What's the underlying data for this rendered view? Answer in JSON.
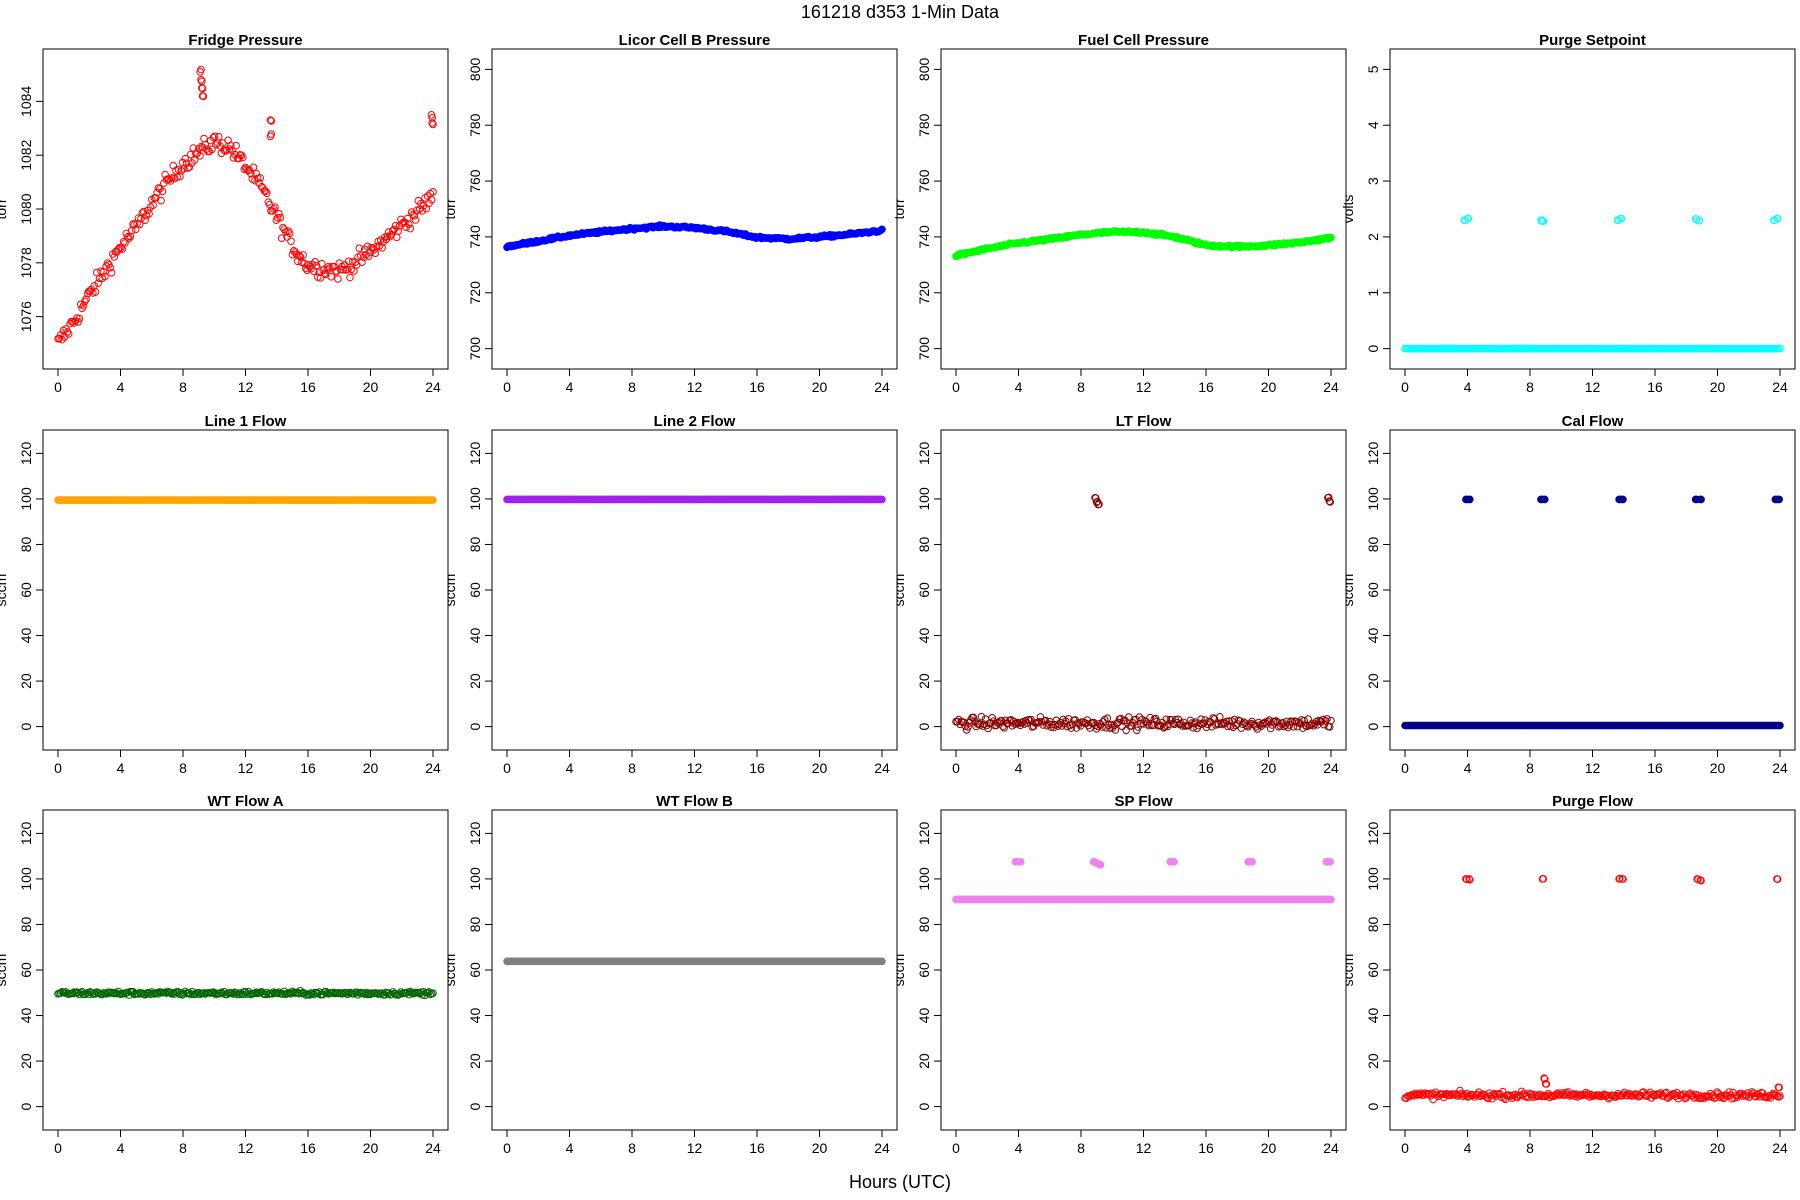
{
  "figure": {
    "title": "161218    d353    1-Min Data",
    "xlabel": "Hours (UTC)"
  },
  "chart_data": [
    {
      "type": "scatter",
      "title": "Fridge Pressure",
      "ylabel": "torr",
      "color": "#ff0000",
      "filled": false,
      "xlim": [
        0,
        24
      ],
      "ylim": [
        1074.5,
        1085.5
      ],
      "xticks": [
        0,
        4,
        8,
        12,
        16,
        20,
        24
      ],
      "yticks": [
        1076,
        1078,
        1080,
        1082,
        1084
      ],
      "x": [
        0,
        1,
        2,
        3,
        4,
        5,
        6,
        7,
        8,
        9,
        10,
        11,
        12,
        13,
        14,
        15,
        16,
        17,
        18,
        19,
        20,
        21,
        22,
        23,
        24
      ],
      "y": [
        1075.0,
        1075.8,
        1076.8,
        1077.7,
        1078.6,
        1079.3,
        1080.2,
        1081.0,
        1081.7,
        1082.1,
        1082.5,
        1082.3,
        1081.6,
        1080.8,
        1079.7,
        1078.6,
        1077.9,
        1077.8,
        1077.7,
        1078.0,
        1078.4,
        1078.9,
        1079.4,
        1079.9,
        1080.5
      ],
      "noise": 0.25,
      "extra_points": [
        {
          "x": 9.1,
          "y": 1085.1
        },
        {
          "x": 9.15,
          "y": 1084.8
        },
        {
          "x": 9.2,
          "y": 1084.5
        },
        {
          "x": 9.25,
          "y": 1084.2
        },
        {
          "x": 13.6,
          "y": 1083.3
        },
        {
          "x": 13.6,
          "y": 1082.7
        },
        {
          "x": 23.9,
          "y": 1083.5
        },
        {
          "x": 23.95,
          "y": 1083.2
        }
      ]
    },
    {
      "type": "scatter",
      "title": "Licor Cell B Pressure",
      "ylabel": "torr",
      "color": "#0000ff",
      "filled": true,
      "xlim": [
        0,
        24
      ],
      "ylim": [
        697,
        803
      ],
      "xticks": [
        0,
        4,
        8,
        12,
        16,
        20,
        24
      ],
      "yticks": [
        700,
        720,
        740,
        760,
        780,
        800
      ],
      "x": [
        0,
        2,
        4,
        6,
        8,
        10,
        12,
        14,
        16,
        18,
        20,
        22,
        24
      ],
      "y": [
        736.5,
        738.5,
        740.5,
        741.8,
        743.0,
        743.8,
        743.3,
        742.0,
        739.8,
        739.3,
        740.0,
        741.0,
        742.3
      ],
      "noise": 0.3,
      "extra_points": []
    },
    {
      "type": "scatter",
      "title": "Fuel Cell Pressure",
      "ylabel": "torr",
      "color": "#00ff00",
      "filled": true,
      "xlim": [
        0,
        24
      ],
      "ylim": [
        697,
        803
      ],
      "xticks": [
        0,
        4,
        8,
        12,
        16,
        20,
        24
      ],
      "yticks": [
        700,
        720,
        740,
        760,
        780,
        800
      ],
      "x": [
        0,
        2,
        4,
        6,
        8,
        10,
        12,
        14,
        16,
        18,
        20,
        22,
        24
      ],
      "y": [
        733.3,
        735.8,
        737.8,
        739.2,
        740.8,
        741.8,
        741.7,
        740.0,
        737.0,
        736.5,
        737.0,
        738.0,
        739.7
      ],
      "noise": 0.3,
      "extra_points": []
    },
    {
      "type": "scatter",
      "title": "Purge Setpoint",
      "ylabel": "volts",
      "color": "#00ffff",
      "filled": false,
      "xlim": [
        0,
        24
      ],
      "ylim": [
        -0.15,
        5.15
      ],
      "xticks": [
        0,
        4,
        8,
        12,
        16,
        20,
        24
      ],
      "yticks": [
        0,
        1,
        2,
        3,
        4,
        5
      ],
      "x": [
        0,
        24
      ],
      "y": [
        0,
        0
      ],
      "noise": 0.0,
      "extra_points": [
        {
          "x": 3.8,
          "y": 2.3
        },
        {
          "x": 4.0,
          "y": 2.33
        },
        {
          "x": 8.7,
          "y": 2.3
        },
        {
          "x": 8.8,
          "y": 2.28
        },
        {
          "x": 13.6,
          "y": 2.3
        },
        {
          "x": 13.8,
          "y": 2.33
        },
        {
          "x": 18.6,
          "y": 2.32
        },
        {
          "x": 18.8,
          "y": 2.29
        },
        {
          "x": 23.6,
          "y": 2.3
        },
        {
          "x": 23.8,
          "y": 2.33
        }
      ]
    },
    {
      "type": "scatter",
      "title": "Line 1 Flow",
      "ylabel": "sccm",
      "color": "#ffa500",
      "filled": true,
      "xlim": [
        0,
        24
      ],
      "ylim": [
        -5,
        125
      ],
      "xticks": [
        0,
        4,
        8,
        12,
        16,
        20,
        24
      ],
      "yticks": [
        0,
        20,
        40,
        60,
        80,
        100,
        120
      ],
      "x": [
        0,
        24
      ],
      "y": [
        99.5,
        99.5
      ],
      "noise": 0.0,
      "extra_points": []
    },
    {
      "type": "scatter",
      "title": "Line 2 Flow",
      "ylabel": "sccm",
      "color": "#a020f0",
      "filled": true,
      "xlim": [
        0,
        24
      ],
      "ylim": [
        -5,
        125
      ],
      "xticks": [
        0,
        4,
        8,
        12,
        16,
        20,
        24
      ],
      "yticks": [
        0,
        20,
        40,
        60,
        80,
        100,
        120
      ],
      "x": [
        0,
        24
      ],
      "y": [
        99.8,
        99.8
      ],
      "noise": 0.0,
      "extra_points": []
    },
    {
      "type": "scatter",
      "title": "LT Flow",
      "ylabel": "sccm",
      "color": "#8b0000",
      "filled": false,
      "xlim": [
        0,
        24
      ],
      "ylim": [
        -5,
        125
      ],
      "xticks": [
        0,
        4,
        8,
        12,
        16,
        20,
        24
      ],
      "yticks": [
        0,
        20,
        40,
        60,
        80,
        100,
        120
      ],
      "x": [
        0,
        24
      ],
      "y": [
        1.5,
        1.5
      ],
      "noise": 1.8,
      "extra_points": [
        {
          "x": 8.9,
          "y": 100.5
        },
        {
          "x": 9.0,
          "y": 98.5
        },
        {
          "x": 9.1,
          "y": 97.5
        },
        {
          "x": 23.8,
          "y": 100.5
        },
        {
          "x": 23.9,
          "y": 99.0
        }
      ]
    },
    {
      "type": "scatter",
      "title": "Cal Flow",
      "ylabel": "sccm",
      "color": "#00008b",
      "filled": true,
      "xlim": [
        0,
        24
      ],
      "ylim": [
        -5,
        125
      ],
      "xticks": [
        0,
        4,
        8,
        12,
        16,
        20,
        24
      ],
      "yticks": [
        0,
        20,
        40,
        60,
        80,
        100,
        120
      ],
      "x": [
        0,
        24
      ],
      "y": [
        0.5,
        0.5
      ],
      "noise": 0.0,
      "extra_points": [
        {
          "x": 3.9,
          "y": 99.8
        },
        {
          "x": 4.1,
          "y": 99.8
        },
        {
          "x": 8.7,
          "y": 99.8
        },
        {
          "x": 8.9,
          "y": 99.8
        },
        {
          "x": 13.7,
          "y": 99.8
        },
        {
          "x": 13.9,
          "y": 99.8
        },
        {
          "x": 18.6,
          "y": 99.8
        },
        {
          "x": 18.9,
          "y": 99.8
        },
        {
          "x": 23.7,
          "y": 99.8
        },
        {
          "x": 23.9,
          "y": 99.8
        }
      ]
    },
    {
      "type": "scatter",
      "title": "WT Flow A",
      "ylabel": "sccm",
      "color": "#006400",
      "filled": false,
      "xlim": [
        0,
        24
      ],
      "ylim": [
        -5,
        125
      ],
      "xticks": [
        0,
        4,
        8,
        12,
        16,
        20,
        24
      ],
      "yticks": [
        0,
        20,
        40,
        60,
        80,
        100,
        120
      ],
      "x": [
        0,
        24
      ],
      "y": [
        49.8,
        49.8
      ],
      "noise": 0.6,
      "extra_points": []
    },
    {
      "type": "scatter",
      "title": "WT Flow B",
      "ylabel": "sccm",
      "color": "#808080",
      "filled": true,
      "xlim": [
        0,
        24
      ],
      "ylim": [
        -5,
        125
      ],
      "xticks": [
        0,
        4,
        8,
        12,
        16,
        20,
        24
      ],
      "yticks": [
        0,
        20,
        40,
        60,
        80,
        100,
        120
      ],
      "x": [
        0,
        24
      ],
      "y": [
        63.8,
        63.8
      ],
      "noise": 0.0,
      "extra_points": []
    },
    {
      "type": "scatter",
      "title": "SP Flow",
      "ylabel": "sccm",
      "color": "#ee82ee",
      "filled": true,
      "xlim": [
        0,
        24
      ],
      "ylim": [
        -5,
        125
      ],
      "xticks": [
        0,
        4,
        8,
        12,
        16,
        20,
        24
      ],
      "yticks": [
        0,
        20,
        40,
        60,
        80,
        100,
        120
      ],
      "x": [
        0,
        24
      ],
      "y": [
        91.0,
        91.0
      ],
      "noise": 0.0,
      "extra_points": [
        {
          "x": 3.8,
          "y": 107.5
        },
        {
          "x": 4.1,
          "y": 107.5
        },
        {
          "x": 8.8,
          "y": 107.5
        },
        {
          "x": 9.0,
          "y": 107.0
        },
        {
          "x": 9.2,
          "y": 106.2
        },
        {
          "x": 13.7,
          "y": 107.5
        },
        {
          "x": 13.9,
          "y": 107.5
        },
        {
          "x": 18.7,
          "y": 107.5
        },
        {
          "x": 18.9,
          "y": 107.5
        },
        {
          "x": 23.7,
          "y": 107.5
        },
        {
          "x": 23.9,
          "y": 107.5
        }
      ]
    },
    {
      "type": "scatter",
      "title": "Purge Flow",
      "ylabel": "sccm",
      "color": "#ff0000",
      "filled": false,
      "xlim": [
        0,
        24
      ],
      "ylim": [
        -5,
        125
      ],
      "xticks": [
        0,
        4,
        8,
        12,
        16,
        20,
        24
      ],
      "yticks": [
        0,
        20,
        40,
        60,
        80,
        100,
        120
      ],
      "x": [
        0,
        24
      ],
      "y": [
        5.0,
        5.0
      ],
      "noise": 1.0,
      "extra_points": [
        {
          "x": 3.9,
          "y": 100.0
        },
        {
          "x": 4.1,
          "y": 100.0
        },
        {
          "x": 8.8,
          "y": 100.0
        },
        {
          "x": 8.9,
          "y": 12.5
        },
        {
          "x": 9.0,
          "y": 10.0
        },
        {
          "x": 13.7,
          "y": 100.0
        },
        {
          "x": 13.9,
          "y": 100.0
        },
        {
          "x": 18.7,
          "y": 100.0
        },
        {
          "x": 18.9,
          "y": 99.5
        },
        {
          "x": 23.8,
          "y": 100.0
        },
        {
          "x": 23.9,
          "y": 8.5
        }
      ]
    }
  ]
}
